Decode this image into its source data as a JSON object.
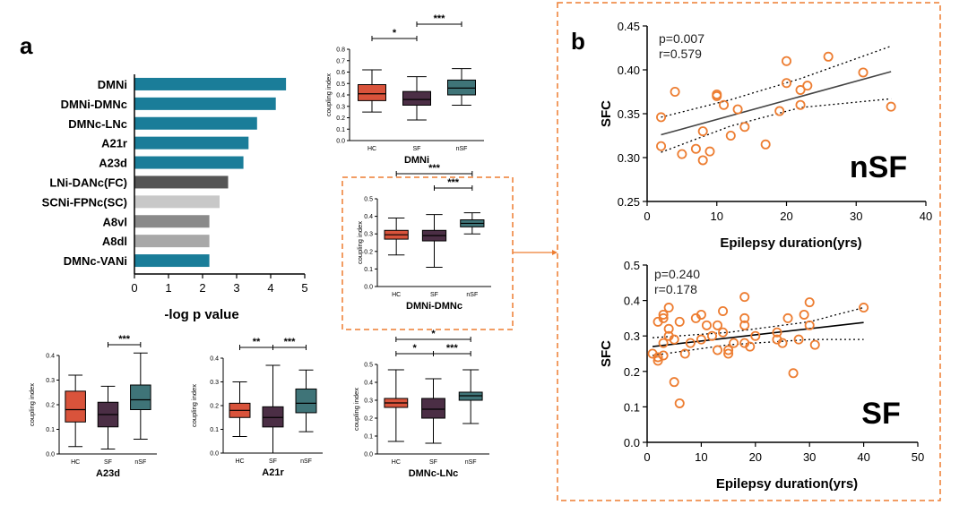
{
  "panel_labels": {
    "a": "a",
    "b": "b"
  },
  "colors": {
    "hc": "#d9533b",
    "sf": "#4b2e45",
    "nsf": "#3f7478",
    "bar_teal": "#1a7d99",
    "bar_dark": "#555555",
    "bar_light": "#c8c8c8",
    "bar_mid": "#8a8a8a",
    "bar_lightmid": "#a8a8a8",
    "orange": "#ed7d31",
    "dashed": "#ed7d31"
  },
  "chart_data": [
    {
      "id": "bar",
      "type": "bar",
      "orientation": "horizontal",
      "categories": [
        "DMNi",
        "DMNi-DMNc",
        "DMNc-LNc",
        "A21r",
        "A23d",
        "LNi-DANc(FC)",
        "SCNi-FPNc(SC)",
        "A8vl",
        "A8dl",
        "DMNc-VANi"
      ],
      "values": [
        4.45,
        4.15,
        3.6,
        3.35,
        3.2,
        2.75,
        2.5,
        2.2,
        2.2,
        2.2
      ],
      "bar_colors": [
        "#1a7d99",
        "#1a7d99",
        "#1a7d99",
        "#1a7d99",
        "#1a7d99",
        "#555555",
        "#c8c8c8",
        "#8a8a8a",
        "#a8a8a8",
        "#1a7d99"
      ],
      "xlabel": "-log p value",
      "xlim": [
        0,
        5
      ],
      "xticks": [
        "0",
        "1",
        "2",
        "3",
        "4",
        "5"
      ]
    },
    {
      "id": "box-dmni",
      "type": "box",
      "title": "DMNi",
      "ylabel": "coupling index",
      "ylim": [
        0,
        0.8
      ],
      "yticks": [
        "0.0",
        "0.1",
        "0.2",
        "0.3",
        "0.4",
        "0.5",
        "0.6",
        "0.7",
        "0.8"
      ],
      "groups": [
        "HC",
        "SF",
        "nSF"
      ],
      "boxes": [
        {
          "min": 0.25,
          "q1": 0.35,
          "median": 0.41,
          "q3": 0.49,
          "max": 0.62
        },
        {
          "min": 0.18,
          "q1": 0.31,
          "median": 0.36,
          "q3": 0.43,
          "max": 0.56
        },
        {
          "min": 0.31,
          "q1": 0.4,
          "median": 0.46,
          "q3": 0.53,
          "max": 0.63
        }
      ],
      "brackets": [
        {
          "from": 0,
          "to": 1,
          "label": "*",
          "level": 0
        },
        {
          "from": 1,
          "to": 2,
          "label": "***",
          "level": 1
        }
      ]
    },
    {
      "id": "box-dmni-dmnc",
      "type": "box",
      "title": "DMNi-DMNc",
      "ylabel": "coupling index",
      "ylim": [
        0,
        0.5
      ],
      "yticks": [
        "0.0",
        "0.1",
        "0.2",
        "0.3",
        "0.4",
        "0.5"
      ],
      "groups": [
        "HC",
        "SF",
        "nSF"
      ],
      "boxes": [
        {
          "min": 0.18,
          "q1": 0.27,
          "median": 0.295,
          "q3": 0.32,
          "max": 0.39
        },
        {
          "min": 0.11,
          "q1": 0.26,
          "median": 0.29,
          "q3": 0.32,
          "max": 0.41
        },
        {
          "min": 0.3,
          "q1": 0.34,
          "median": 0.36,
          "q3": 0.38,
          "max": 0.42
        }
      ],
      "brackets": [
        {
          "from": 0,
          "to": 2,
          "label": "***",
          "level": 1
        },
        {
          "from": 1,
          "to": 2,
          "label": "***",
          "level": 0
        }
      ]
    },
    {
      "id": "box-a23d",
      "type": "box",
      "title": "A23d",
      "ylabel": "coupling index",
      "ylim": [
        0,
        0.4
      ],
      "yticks": [
        "0.0",
        "0.1",
        "0.2",
        "0.3",
        "0.4"
      ],
      "groups": [
        "HC",
        "SF",
        "nSF"
      ],
      "boxes": [
        {
          "min": 0.03,
          "q1": 0.13,
          "median": 0.18,
          "q3": 0.255,
          "max": 0.32
        },
        {
          "min": 0.02,
          "q1": 0.11,
          "median": 0.16,
          "q3": 0.21,
          "max": 0.275
        },
        {
          "min": 0.06,
          "q1": 0.18,
          "median": 0.22,
          "q3": 0.28,
          "max": 0.41
        }
      ],
      "brackets": [
        {
          "from": 1,
          "to": 2,
          "label": "***",
          "level": 0
        }
      ]
    },
    {
      "id": "box-a21r",
      "type": "box",
      "title": "A21r",
      "ylabel": "coupling index",
      "ylim": [
        0,
        0.4
      ],
      "yticks": [
        "0.0",
        "0.1",
        "0.2",
        "0.3",
        "0.4"
      ],
      "groups": [
        "HC",
        "SF",
        "nSF"
      ],
      "boxes": [
        {
          "min": 0.07,
          "q1": 0.15,
          "median": 0.18,
          "q3": 0.21,
          "max": 0.3
        },
        {
          "min": 0.0,
          "q1": 0.11,
          "median": 0.15,
          "q3": 0.195,
          "max": 0.37
        },
        {
          "min": 0.09,
          "q1": 0.17,
          "median": 0.21,
          "q3": 0.27,
          "max": 0.35
        }
      ],
      "brackets": [
        {
          "from": 0,
          "to": 1,
          "label": "**",
          "level": 0
        },
        {
          "from": 1,
          "to": 2,
          "label": "***",
          "level": 0
        }
      ]
    },
    {
      "id": "box-dmnc-lnc",
      "type": "box",
      "title": "DMNc-LNc",
      "ylabel": "coupling index",
      "ylim": [
        0,
        0.5
      ],
      "yticks": [
        "0.0",
        "0.1",
        "0.2",
        "0.3",
        "0.4",
        "0.5"
      ],
      "groups": [
        "HC",
        "SF",
        "nSF"
      ],
      "boxes": [
        {
          "min": 0.07,
          "q1": 0.26,
          "median": 0.285,
          "q3": 0.31,
          "max": 0.47
        },
        {
          "min": 0.06,
          "q1": 0.2,
          "median": 0.25,
          "q3": 0.31,
          "max": 0.42
        },
        {
          "min": 0.17,
          "q1": 0.3,
          "median": 0.325,
          "q3": 0.345,
          "max": 0.47
        }
      ],
      "brackets": [
        {
          "from": 0,
          "to": 2,
          "label": "*",
          "level": 1
        },
        {
          "from": 0,
          "to": 1,
          "label": "*",
          "level": 0
        },
        {
          "from": 1,
          "to": 2,
          "label": "***",
          "level": 0
        }
      ]
    },
    {
      "id": "scatter-nsf",
      "type": "scatter",
      "group_label": "nSF",
      "xlabel": "Epilepsy duration(yrs)",
      "ylabel": "SFC",
      "xlim": [
        0,
        40
      ],
      "ylim": [
        0.25,
        0.45
      ],
      "xticks": [
        "0",
        "10",
        "20",
        "30",
        "40"
      ],
      "yticks": [
        "0.25",
        "0.30",
        "0.35",
        "0.40",
        "0.45"
      ],
      "stats": [
        "p=0.007",
        "r=0.579"
      ],
      "fit": {
        "x": [
          2,
          35
        ],
        "y": [
          0.326,
          0.398
        ]
      },
      "ci_upper": {
        "x": [
          2,
          12,
          22,
          35
        ],
        "y": [
          0.346,
          0.366,
          0.39,
          0.427
        ]
      },
      "ci_lower": {
        "x": [
          2,
          12,
          22,
          35
        ],
        "y": [
          0.306,
          0.336,
          0.357,
          0.367
        ]
      },
      "points": [
        [
          2,
          0.346
        ],
        [
          2,
          0.313
        ],
        [
          4,
          0.375
        ],
        [
          5,
          0.304
        ],
        [
          7,
          0.31
        ],
        [
          8,
          0.297
        ],
        [
          8,
          0.33
        ],
        [
          9,
          0.307
        ],
        [
          10,
          0.37
        ],
        [
          10,
          0.372
        ],
        [
          11,
          0.36
        ],
        [
          12,
          0.325
        ],
        [
          13,
          0.355
        ],
        [
          14,
          0.335
        ],
        [
          17,
          0.315
        ],
        [
          19,
          0.353
        ],
        [
          20,
          0.385
        ],
        [
          20,
          0.41
        ],
        [
          22,
          0.36
        ],
        [
          22,
          0.377
        ],
        [
          23,
          0.382
        ],
        [
          26,
          0.415
        ],
        [
          31,
          0.397
        ],
        [
          35,
          0.358
        ]
      ]
    },
    {
      "id": "scatter-sf",
      "type": "scatter",
      "group_label": "SF",
      "xlabel": "Epilepsy duration(yrs)",
      "ylabel": "SFC",
      "xlim": [
        0,
        50
      ],
      "ylim": [
        0.0,
        0.5
      ],
      "xticks": [
        "0",
        "10",
        "20",
        "30",
        "40",
        "50"
      ],
      "yticks": [
        "0.0",
        "0.1",
        "0.2",
        "0.3",
        "0.4",
        "0.5"
      ],
      "stats": [
        "p=0.240",
        "r=0.178"
      ],
      "fit": {
        "x": [
          1,
          40
        ],
        "y": [
          0.27,
          0.338
        ]
      },
      "ci_upper": {
        "x": [
          1,
          15,
          30,
          40
        ],
        "y": [
          0.295,
          0.31,
          0.34,
          0.38
        ]
      },
      "ci_lower": {
        "x": [
          1,
          15,
          30,
          40
        ],
        "y": [
          0.245,
          0.275,
          0.29,
          0.29
        ]
      },
      "points": [
        [
          1,
          0.25
        ],
        [
          2,
          0.23
        ],
        [
          2,
          0.34
        ],
        [
          2,
          0.24
        ],
        [
          3,
          0.36
        ],
        [
          3,
          0.28
        ],
        [
          3,
          0.35
        ],
        [
          3,
          0.245
        ],
        [
          4,
          0.38
        ],
        [
          4,
          0.32
        ],
        [
          4,
          0.3
        ],
        [
          5,
          0.29
        ],
        [
          5,
          0.17
        ],
        [
          6,
          0.11
        ],
        [
          6,
          0.34
        ],
        [
          7,
          0.25
        ],
        [
          8,
          0.28
        ],
        [
          9,
          0.35
        ],
        [
          10,
          0.36
        ],
        [
          10,
          0.29
        ],
        [
          11,
          0.33
        ],
        [
          12,
          0.3
        ],
        [
          13,
          0.26
        ],
        [
          13,
          0.33
        ],
        [
          14,
          0.37
        ],
        [
          14,
          0.31
        ],
        [
          15,
          0.26
        ],
        [
          15,
          0.25
        ],
        [
          16,
          0.28
        ],
        [
          18,
          0.41
        ],
        [
          18,
          0.35
        ],
        [
          18,
          0.33
        ],
        [
          18,
          0.28
        ],
        [
          19,
          0.27
        ],
        [
          20,
          0.3
        ],
        [
          24,
          0.31
        ],
        [
          24,
          0.29
        ],
        [
          25,
          0.28
        ],
        [
          26,
          0.35
        ],
        [
          27,
          0.195
        ],
        [
          28,
          0.29
        ],
        [
          29,
          0.36
        ],
        [
          30,
          0.33
        ],
        [
          30,
          0.395
        ],
        [
          31,
          0.275
        ],
        [
          40,
          0.38
        ]
      ]
    }
  ]
}
